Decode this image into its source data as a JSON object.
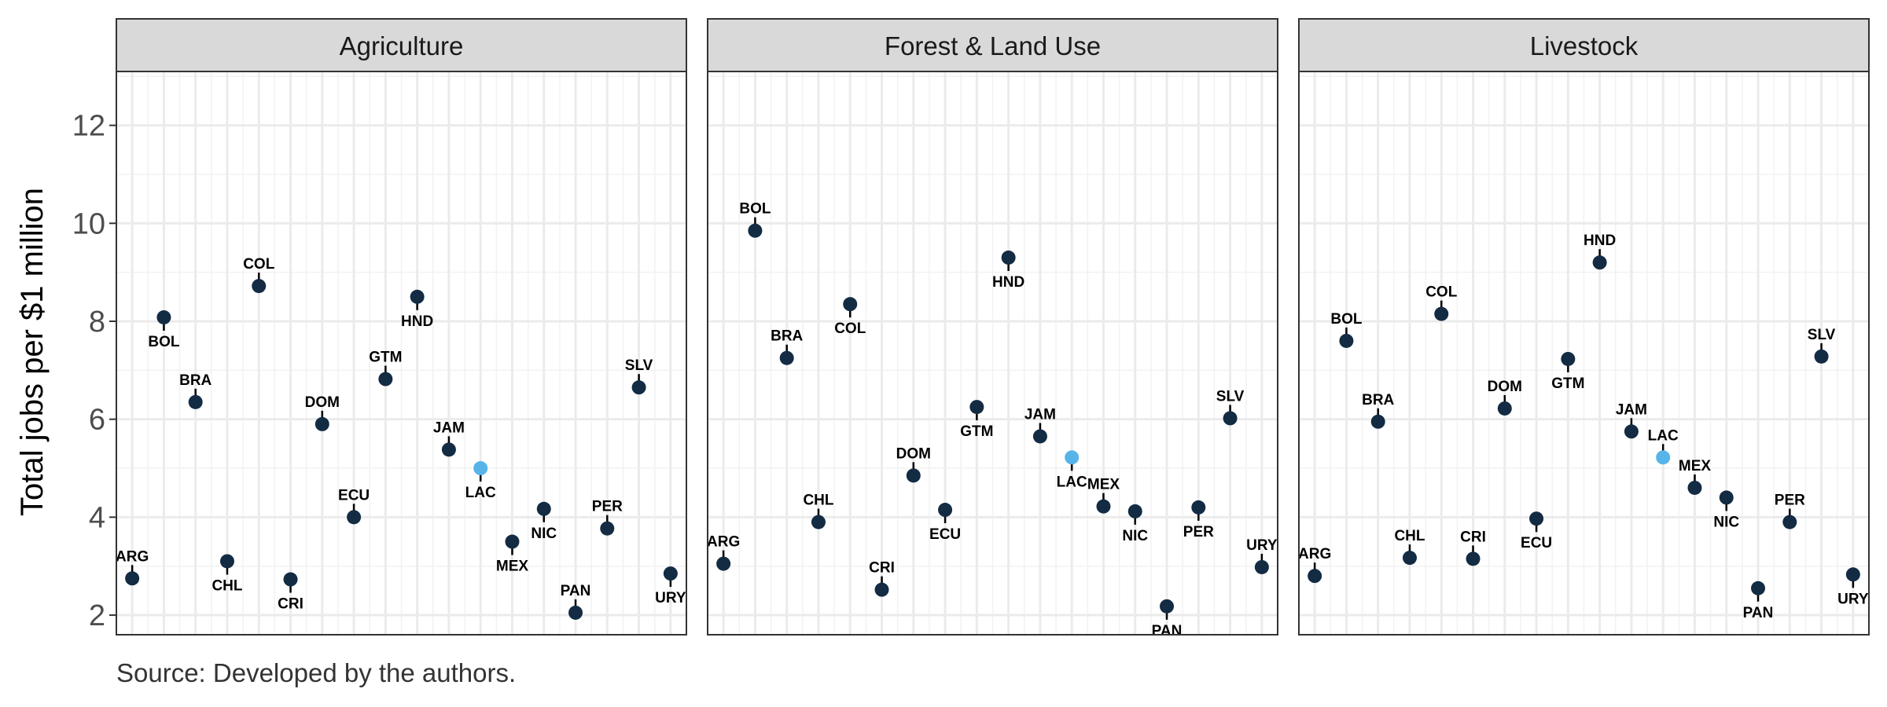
{
  "chart_data": {
    "type": "scatter",
    "ylabel": "Total jobs per $1 million",
    "ylim": [
      1.6,
      13.1
    ],
    "yticks": [
      2,
      4,
      6,
      8,
      10,
      12
    ],
    "grid": true,
    "caption": "Source: Developed by the authors.",
    "highlight_color": "#56b4e9",
    "point_color": "#132b43",
    "categories": [
      "ARG",
      "BOL",
      "BRA",
      "CHL",
      "COL",
      "CRI",
      "DOM",
      "ECU",
      "GTM",
      "HND",
      "JAM",
      "LAC",
      "MEX",
      "NIC",
      "PAN",
      "PER",
      "SLV",
      "URY"
    ],
    "panels": [
      {
        "title": "Agriculture",
        "points": [
          {
            "x": "ARG",
            "y": 2.75,
            "label": "ARG",
            "pos": "above"
          },
          {
            "x": "BOL",
            "y": 8.08,
            "label": "BOL",
            "pos": "below"
          },
          {
            "x": "BRA",
            "y": 6.35,
            "label": "BRA",
            "pos": "above"
          },
          {
            "x": "CHL",
            "y": 3.1,
            "label": "CHL",
            "pos": "below"
          },
          {
            "x": "COL",
            "y": 8.72,
            "label": "COL",
            "pos": "above"
          },
          {
            "x": "CRI",
            "y": 2.73,
            "label": "CRI",
            "pos": "below"
          },
          {
            "x": "DOM",
            "y": 5.9,
            "label": "DOM",
            "pos": "above"
          },
          {
            "x": "ECU",
            "y": 4.0,
            "label": "ECU",
            "pos": "above"
          },
          {
            "x": "GTM",
            "y": 6.82,
            "label": "GTM",
            "pos": "above"
          },
          {
            "x": "HND",
            "y": 8.5,
            "label": "HND",
            "pos": "below"
          },
          {
            "x": "JAM",
            "y": 5.38,
            "label": "JAM",
            "pos": "above"
          },
          {
            "x": "LAC",
            "y": 5.0,
            "label": "LAC",
            "pos": "below",
            "highlight": true
          },
          {
            "x": "MEX",
            "y": 3.5,
            "label": "MEX",
            "pos": "below"
          },
          {
            "x": "NIC",
            "y": 4.17,
            "label": "NIC",
            "pos": "below"
          },
          {
            "x": "PAN",
            "y": 2.05,
            "label": "PAN",
            "pos": "above"
          },
          {
            "x": "PER",
            "y": 3.77,
            "label": "PER",
            "pos": "above"
          },
          {
            "x": "SLV",
            "y": 6.65,
            "label": "SLV",
            "pos": "above"
          },
          {
            "x": "URY",
            "y": 2.85,
            "label": "URY",
            "pos": "below"
          }
        ]
      },
      {
        "title": "Forest & Land Use",
        "points": [
          {
            "x": "ARG",
            "y": 3.05,
            "label": "ARG",
            "pos": "above"
          },
          {
            "x": "BOL",
            "y": 9.85,
            "label": "BOL",
            "pos": "above"
          },
          {
            "x": "BRA",
            "y": 7.25,
            "label": "BRA",
            "pos": "above"
          },
          {
            "x": "CHL",
            "y": 3.9,
            "label": "CHL",
            "pos": "above"
          },
          {
            "x": "COL",
            "y": 8.35,
            "label": "COL",
            "pos": "below"
          },
          {
            "x": "CRI",
            "y": 2.52,
            "label": "CRI",
            "pos": "above"
          },
          {
            "x": "DOM",
            "y": 4.85,
            "label": "DOM",
            "pos": "above"
          },
          {
            "x": "ECU",
            "y": 4.15,
            "label": "ECU",
            "pos": "below"
          },
          {
            "x": "GTM",
            "y": 6.25,
            "label": "GTM",
            "pos": "below"
          },
          {
            "x": "HND",
            "y": 9.3,
            "label": "HND",
            "pos": "below"
          },
          {
            "x": "JAM",
            "y": 5.65,
            "label": "JAM",
            "pos": "above"
          },
          {
            "x": "LAC",
            "y": 5.22,
            "label": "LAC",
            "pos": "below",
            "highlight": true
          },
          {
            "x": "MEX",
            "y": 4.22,
            "label": "MEX",
            "pos": "above"
          },
          {
            "x": "NIC",
            "y": 4.12,
            "label": "NIC",
            "pos": "below"
          },
          {
            "x": "PAN",
            "y": 2.18,
            "label": "PAN",
            "pos": "below"
          },
          {
            "x": "PER",
            "y": 4.2,
            "label": "PER",
            "pos": "below"
          },
          {
            "x": "SLV",
            "y": 6.02,
            "label": "SLV",
            "pos": "above"
          },
          {
            "x": "URY",
            "y": 2.98,
            "label": "URY",
            "pos": "above"
          }
        ]
      },
      {
        "title": "Livestock",
        "points": [
          {
            "x": "ARG",
            "y": 2.8,
            "label": "ARG",
            "pos": "above"
          },
          {
            "x": "BOL",
            "y": 7.6,
            "label": "BOL",
            "pos": "above"
          },
          {
            "x": "BRA",
            "y": 5.95,
            "label": "BRA",
            "pos": "above"
          },
          {
            "x": "CHL",
            "y": 3.17,
            "label": "CHL",
            "pos": "above"
          },
          {
            "x": "COL",
            "y": 8.15,
            "label": "COL",
            "pos": "above"
          },
          {
            "x": "CRI",
            "y": 3.15,
            "label": "CRI",
            "pos": "above"
          },
          {
            "x": "DOM",
            "y": 6.22,
            "label": "DOM",
            "pos": "above"
          },
          {
            "x": "ECU",
            "y": 3.97,
            "label": "ECU",
            "pos": "below"
          },
          {
            "x": "GTM",
            "y": 7.23,
            "label": "GTM",
            "pos": "below"
          },
          {
            "x": "HND",
            "y": 9.2,
            "label": "HND",
            "pos": "above"
          },
          {
            "x": "JAM",
            "y": 5.75,
            "label": "JAM",
            "pos": "above"
          },
          {
            "x": "LAC",
            "y": 5.22,
            "label": "LAC",
            "pos": "above",
            "highlight": true
          },
          {
            "x": "MEX",
            "y": 4.6,
            "label": "MEX",
            "pos": "above"
          },
          {
            "x": "NIC",
            "y": 4.4,
            "label": "NIC",
            "pos": "below"
          },
          {
            "x": "PAN",
            "y": 2.55,
            "label": "PAN",
            "pos": "below"
          },
          {
            "x": "PER",
            "y": 3.9,
            "label": "PER",
            "pos": "above"
          },
          {
            "x": "SLV",
            "y": 7.28,
            "label": "SLV",
            "pos": "above"
          },
          {
            "x": "URY",
            "y": 2.83,
            "label": "URY",
            "pos": "below"
          }
        ]
      }
    ]
  }
}
